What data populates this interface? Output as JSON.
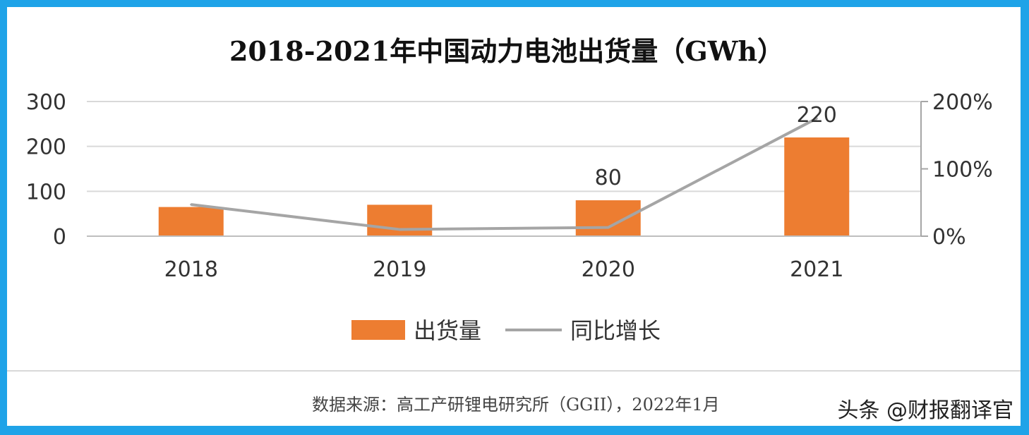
{
  "chart_data": {
    "type": "bar",
    "title": "2018-2021年中国动力电池出货量（GWh）",
    "categories": [
      "2018",
      "2019",
      "2020",
      "2021"
    ],
    "series": [
      {
        "name": "出货量",
        "kind": "bar",
        "axis": "left",
        "color": "#ed7d31",
        "values": [
          65,
          70,
          80,
          220
        ],
        "data_labels": [
          "",
          "",
          "80",
          "220"
        ]
      },
      {
        "name": "同比增长",
        "kind": "line",
        "axis": "right",
        "color": "#a5a5a5",
        "values": [
          47,
          10,
          13,
          175
        ]
      }
    ],
    "y_left": {
      "ylim": [
        0,
        300
      ],
      "ticks": [
        "0",
        "100",
        "200",
        "300"
      ]
    },
    "y_right": {
      "ylim": [
        0,
        200
      ],
      "ticks": [
        "0%",
        "100%",
        "200%"
      ]
    },
    "grid": true,
    "legend": {
      "placement": "bottom-center"
    }
  },
  "footer": {
    "source": "数据来源：高工产研锂电研究所（GGII），2022年1月",
    "watermark": "头条 @财报翻译官"
  }
}
